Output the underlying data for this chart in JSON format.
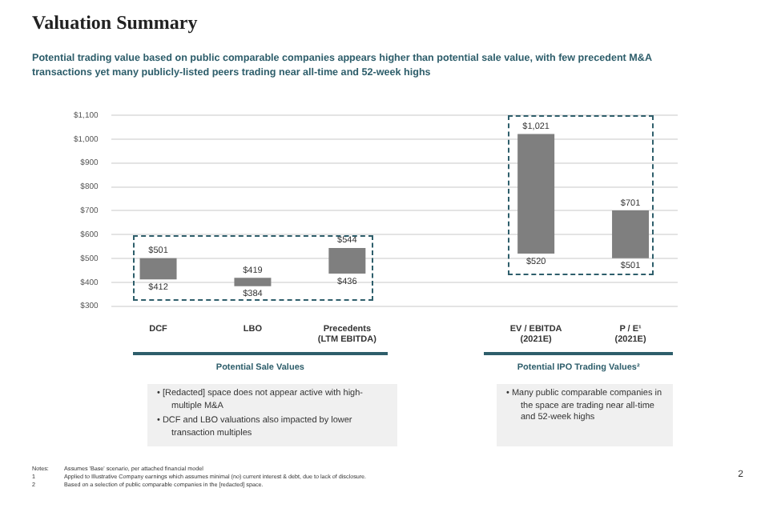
{
  "chart_data": {
    "type": "bar",
    "title": "Valuation Summary",
    "subtitle": "Potential trading value based on public comparable companies appears higher than potential sale value, with few precedent M&A transactions yet many publicly-listed peers trading near all-time and 52-week highs",
    "categories": [
      "DCF",
      "LBO",
      "Precedents\n(LTM EBITDA)",
      null,
      "EV / EBITDA\n(2021E)",
      "P / E¹\n(2021E)"
    ],
    "values": [
      89,
      35,
      108,
      null,
      501,
      200
    ],
    "base": [
      412,
      384,
      436,
      null,
      520,
      501
    ],
    "color": "#7f7f7f",
    "ylim": [
      300,
      1100
    ],
    "yticks": [
      {
        "value": 300,
        "label": "$300"
      },
      {
        "value": 400,
        "label": "$400"
      },
      {
        "value": 500,
        "label": "$500"
      },
      {
        "value": 600,
        "label": "$600"
      },
      {
        "value": 700,
        "label": "$700"
      },
      {
        "value": 800,
        "label": "$800"
      },
      {
        "value": 900,
        "label": "$900"
      },
      {
        "value": 1000,
        "label": "$1,000"
      },
      {
        "value": 1100,
        "label": "$1,100"
      }
    ],
    "grid": "y",
    "annotations": [
      {
        "text": "$501",
        "x": "DCF",
        "y": 501
      },
      {
        "text": "$412",
        "x": "DCF",
        "y": 412
      },
      {
        "text": "$419",
        "x": "LBO",
        "y": 419
      },
      {
        "text": "$384",
        "x": "LBO",
        "y": 384
      },
      {
        "text": "$544",
        "x": "Precedents\n(LTM EBITDA)",
        "y": 544
      },
      {
        "text": "$436",
        "x": "Precedents\n(LTM EBITDA)",
        "y": 436
      },
      {
        "text": "$1,021",
        "x": "EV / EBITDA\n(2021E)",
        "y": 1021
      },
      {
        "text": "$520",
        "x": "EV / EBITDA\n(2021E)",
        "y": 520
      },
      {
        "text": "$701",
        "x": "P / E¹\n(2021E)",
        "y": 701
      },
      {
        "text": "$501",
        "x": "P / E¹\n(2021E)",
        "y": 501
      },
      "Potential Sale Values",
      "Potential IPO Trading Values²",
      "• [Redacted] space does not appear active with high-multiple M&A",
      "• DCF and LBO valuations also impacted by lower transaction multiples",
      "• Many public comparable companies in the space are trading near all-time and 52-week highs",
      "Notes:\tAssumes 'Base' scenario, per attached financial model",
      "1\tApplied to Illustrative Company earnings which assumes minimal (no) current interest & debt, due to lack of disclosure.",
      "2\tBased on a selection of public comparable companies in the [redacted] space.",
      "2"
    ]
  }
}
